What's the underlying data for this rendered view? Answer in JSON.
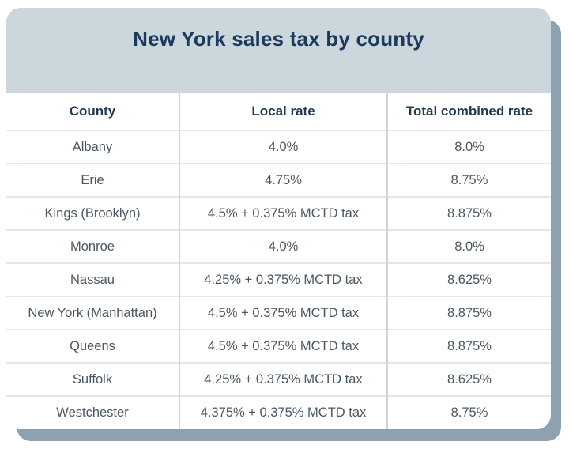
{
  "card": {
    "title": "New York sales tax by county"
  },
  "table": {
    "headers": [
      "County",
      "Local rate",
      "Total combined rate"
    ],
    "rows": [
      {
        "county": "Albany",
        "local_rate": "4.0%",
        "combined_rate": "8.0%"
      },
      {
        "county": "Erie",
        "local_rate": "4.75%",
        "combined_rate": "8.75%"
      },
      {
        "county": "Kings (Brooklyn)",
        "local_rate": "4.5% + 0.375% MCTD tax",
        "combined_rate": "8.875%"
      },
      {
        "county": "Monroe",
        "local_rate": "4.0%",
        "combined_rate": "8.0%"
      },
      {
        "county": "Nassau",
        "local_rate": "4.25% + 0.375% MCTD tax",
        "combined_rate": "8.625%"
      },
      {
        "county": "New York (Manhattan)",
        "local_rate": "4.5% + 0.375% MCTD tax",
        "combined_rate": "8.875%"
      },
      {
        "county": "Queens",
        "local_rate": "4.5% + 0.375% MCTD tax",
        "combined_rate": "8.875%"
      },
      {
        "county": "Suffolk",
        "local_rate": "4.25% + 0.375% MCTD tax",
        "combined_rate": "8.625%"
      },
      {
        "county": "Westchester",
        "local_rate": "4.375% + 0.375% MCTD tax",
        "combined_rate": "8.75%"
      }
    ]
  },
  "colors": {
    "page_background": "#ffffff",
    "card_background": "#ffffff",
    "header_background": "#ccd6dd",
    "shadow": "#8da1b0",
    "title_text": "#1d3a5c",
    "column_header_text": "#223b53",
    "body_text": "#4b5762",
    "row_divider": "#e2e7ea",
    "column_divider": "#cfd6db"
  },
  "chart_data": {
    "type": "table",
    "title": "New York sales tax by county",
    "columns": [
      "County",
      "Local rate",
      "Total combined rate"
    ],
    "rows": [
      [
        "Albany",
        "4.0%",
        "8.0%"
      ],
      [
        "Erie",
        "4.75%",
        "8.75%"
      ],
      [
        "Kings (Brooklyn)",
        "4.5% + 0.375% MCTD tax",
        "8.875%"
      ],
      [
        "Monroe",
        "4.0%",
        "8.0%"
      ],
      [
        "Nassau",
        "4.25% + 0.375% MCTD tax",
        "8.625%"
      ],
      [
        "New York (Manhattan)",
        "4.5% + 0.375% MCTD tax",
        "8.875%"
      ],
      [
        "Queens",
        "4.5% + 0.375% MCTD tax",
        "8.875%"
      ],
      [
        "Suffolk",
        "4.25% + 0.375% MCTD tax",
        "8.625%"
      ],
      [
        "Westchester",
        "4.375% + 0.375% MCTD tax",
        "8.75%"
      ]
    ]
  }
}
